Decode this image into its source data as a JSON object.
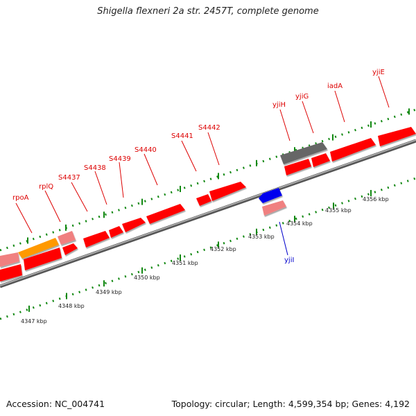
{
  "header": {
    "title": "Shigella flexneri 2a str. 2457T, complete genome"
  },
  "footer": {
    "accession": "Accession: NC_004741",
    "topology": "Topology: circular; Length: 4,599,354 bp; Genes: 4,192"
  },
  "colors": {
    "gene_red": "#ff0000",
    "gene_pink": "#f08080",
    "gene_orange": "#ff9900",
    "gene_blue": "#0000ee",
    "gene_gray": "#666666",
    "backbone": "#888888",
    "tick_green": "#118811",
    "label_red": "#dd0000",
    "label_blue": "#0000cc"
  },
  "scale": {
    "unit": "kbp",
    "ticks": [
      {
        "kbp": 4347,
        "label": "4347 kbp"
      },
      {
        "kbp": 4348,
        "label": "4348 kbp"
      },
      {
        "kbp": 4349,
        "label": "4349 kbp"
      },
      {
        "kbp": 4350,
        "label": "4350 kbp"
      },
      {
        "kbp": 4351,
        "label": "4351 kbp"
      },
      {
        "kbp": 4352,
        "label": "4352 kbp"
      },
      {
        "kbp": 4353,
        "label": "4353 kbp"
      },
      {
        "kbp": 4354,
        "label": "4354 kbp"
      },
      {
        "kbp": 4355,
        "label": "4355 kbp"
      },
      {
        "kbp": 4356,
        "label": "4356 kbp"
      }
    ]
  },
  "genes": [
    {
      "name": "rpoA",
      "strand": "reverse",
      "color": "orange",
      "labeled": true
    },
    {
      "name": "rplQ",
      "strand": "reverse",
      "color": "pink",
      "labeled": true
    },
    {
      "name": "S4437",
      "strand": "reverse",
      "color": "red",
      "labeled": true
    },
    {
      "name": "S4438",
      "strand": "reverse",
      "color": "red",
      "labeled": true
    },
    {
      "name": "S4439",
      "strand": "reverse",
      "color": "red",
      "labeled": true
    },
    {
      "name": "S4440",
      "strand": "reverse",
      "color": "red",
      "labeled": true
    },
    {
      "name": "S4441",
      "strand": "reverse",
      "color": "red",
      "labeled": true
    },
    {
      "name": "S4442",
      "strand": "reverse",
      "color": "red",
      "labeled": true
    },
    {
      "name": "yjiH",
      "strand": "forward",
      "color": "gray",
      "labeled": true
    },
    {
      "name": "yjiG",
      "strand": "forward",
      "color": "red",
      "labeled": true
    },
    {
      "name": "iadA",
      "strand": "forward",
      "color": "red",
      "labeled": true
    },
    {
      "name": "yjiE",
      "strand": "forward",
      "color": "red",
      "labeled": true
    },
    {
      "name": "yjiI",
      "strand": "forward",
      "color": "blue",
      "labeled": true
    }
  ]
}
